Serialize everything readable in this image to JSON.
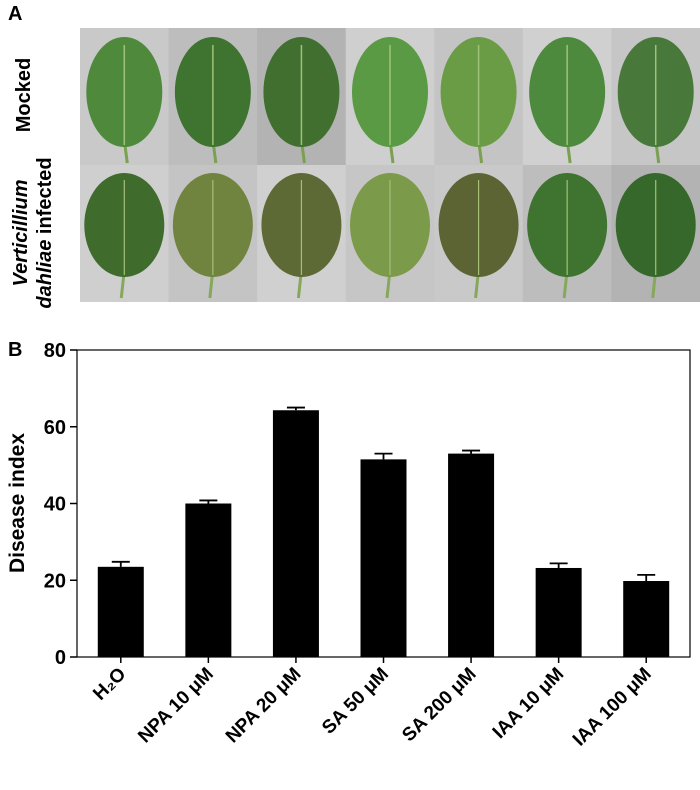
{
  "panel_a": {
    "label": "A",
    "row_1": "Mocked",
    "row_2": {
      "italic_1": "Verticillium",
      "italic_2": "dahliae",
      "plain": "infected"
    }
  },
  "chart_data": {
    "type": "bar",
    "panel_label": "B",
    "y_label": "Disease index",
    "categories": [
      "H₂O",
      "NPA 10 μM",
      "NPA 20 μM",
      "SA 50 μM",
      "SA 200 μM",
      "IAA 10 μM",
      "IAA 100 μM"
    ],
    "values": [
      23.5,
      40,
      64.3,
      51.5,
      53,
      23.2,
      19.8
    ],
    "errors": [
      1.3,
      0.8,
      0.7,
      1.5,
      0.8,
      1.2,
      1.6
    ],
    "color": "#000000",
    "ylim": [
      0,
      80
    ],
    "yticks": [
      0,
      20,
      40,
      60,
      80
    ],
    "grid": false
  }
}
